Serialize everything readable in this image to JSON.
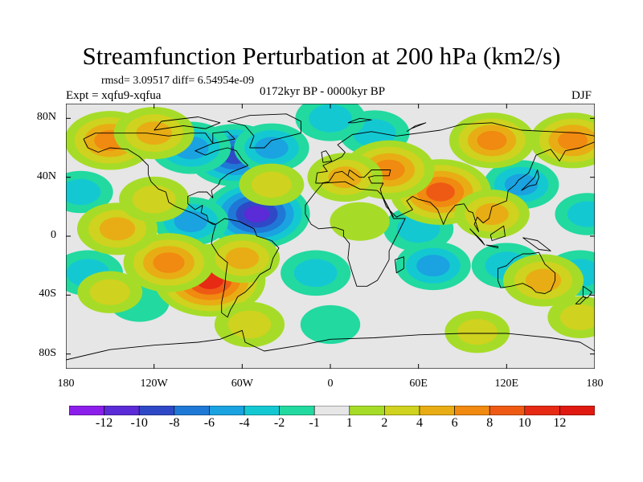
{
  "title": "Streamfunction Perturbation at 200 hPa (km2/s)",
  "stats": "rmsd= 3.09517 diff= 6.54954e-09",
  "experiment": "Expt = xqfu9-xqfua",
  "period": "0172kyr BP - 0000kyr BP",
  "season": "DJF",
  "map": {
    "projection": "cylindrical equidistant",
    "lon_range": [
      -180,
      180
    ],
    "lat_range": [
      -90,
      90
    ],
    "y_tick_labels": [
      {
        "lat": 80,
        "label": "80N"
      },
      {
        "lat": 40,
        "label": "40N"
      },
      {
        "lat": 0,
        "label": "0"
      },
      {
        "lat": -40,
        "label": "40S"
      },
      {
        "lat": -80,
        "label": "80S"
      }
    ],
    "x_tick_labels": [
      {
        "lon": -180,
        "label": "180"
      },
      {
        "lon": -120,
        "label": "120W"
      },
      {
        "lon": -60,
        "label": "60W"
      },
      {
        "lon": 0,
        "label": "0"
      },
      {
        "lon": 60,
        "label": "60E"
      },
      {
        "lon": 120,
        "label": "120E"
      },
      {
        "lon": 180,
        "label": "180"
      }
    ],
    "field_centers": [
      {
        "lon": -50,
        "lat": 15,
        "value": -10
      },
      {
        "lon": -65,
        "lat": 55,
        "value": -8
      },
      {
        "lon": -95,
        "lat": 60,
        "value": -5
      },
      {
        "lon": -40,
        "lat": 60,
        "value": -4
      },
      {
        "lon": -95,
        "lat": 10,
        "value": -4
      },
      {
        "lon": 60,
        "lat": 5,
        "value": -3
      },
      {
        "lon": 30,
        "lat": 70,
        "value": -3
      },
      {
        "lon": 0,
        "lat": 80,
        "value": -3
      },
      {
        "lon": 130,
        "lat": 35,
        "value": -4
      },
      {
        "lon": 175,
        "lat": 15,
        "value": -2
      },
      {
        "lon": -170,
        "lat": 30,
        "value": -2
      },
      {
        "lon": 70,
        "lat": -20,
        "value": -4
      },
      {
        "lon": -10,
        "lat": -25,
        "value": -3
      },
      {
        "lon": 120,
        "lat": -20,
        "value": -3
      },
      {
        "lon": 170,
        "lat": -25,
        "value": -3
      },
      {
        "lon": -165,
        "lat": -25,
        "value": -3
      },
      {
        "lon": 0,
        "lat": -60,
        "value": -1
      },
      {
        "lon": -130,
        "lat": -45,
        "value": -1
      },
      {
        "lon": -82,
        "lat": -30,
        "value": 11
      },
      {
        "lon": -110,
        "lat": -18,
        "value": 7
      },
      {
        "lon": -60,
        "lat": -15,
        "value": 4
      },
      {
        "lon": -145,
        "lat": 5,
        "value": 5
      },
      {
        "lon": -120,
        "lat": 25,
        "value": 3
      },
      {
        "lon": -40,
        "lat": 35,
        "value": 2
      },
      {
        "lon": -150,
        "lat": 65,
        "value": 7
      },
      {
        "lon": -120,
        "lat": 70,
        "value": 5
      },
      {
        "lon": 75,
        "lat": 30,
        "value": 9
      },
      {
        "lon": 40,
        "lat": 45,
        "value": 7
      },
      {
        "lon": 10,
        "lat": 40,
        "value": 4
      },
      {
        "lon": 110,
        "lat": 15,
        "value": 4
      },
      {
        "lon": 110,
        "lat": 65,
        "value": 6
      },
      {
        "lon": 165,
        "lat": 65,
        "value": 6
      },
      {
        "lon": -55,
        "lat": -60,
        "value": 3
      },
      {
        "lon": -150,
        "lat": -38,
        "value": 2
      },
      {
        "lon": 145,
        "lat": -30,
        "value": 5
      },
      {
        "lon": 100,
        "lat": -65,
        "value": 2
      },
      {
        "lon": 170,
        "lat": -55,
        "value": 2
      },
      {
        "lon": 20,
        "lat": 10,
        "value": 1
      }
    ]
  },
  "colorbar": {
    "levels": [
      -12,
      -10,
      -8,
      -6,
      -4,
      -2,
      -1,
      1,
      2,
      4,
      6,
      8,
      10,
      12
    ],
    "tick_labels": [
      "-12",
      "-10",
      "-8",
      "-6",
      "-4",
      "-2",
      "-1",
      "1",
      "2",
      "4",
      "6",
      "8",
      "10",
      "12"
    ],
    "colors": [
      "#8c1eeb",
      "#5a2bd6",
      "#2f49c6",
      "#1f78d6",
      "#1aa3e0",
      "#14c8d2",
      "#22d9a0",
      "#e6e6e6",
      "#a6dc28",
      "#cfd21e",
      "#e8ad14",
      "#f08a10",
      "#ee5a14",
      "#e62a14",
      "#e01a10"
    ]
  }
}
